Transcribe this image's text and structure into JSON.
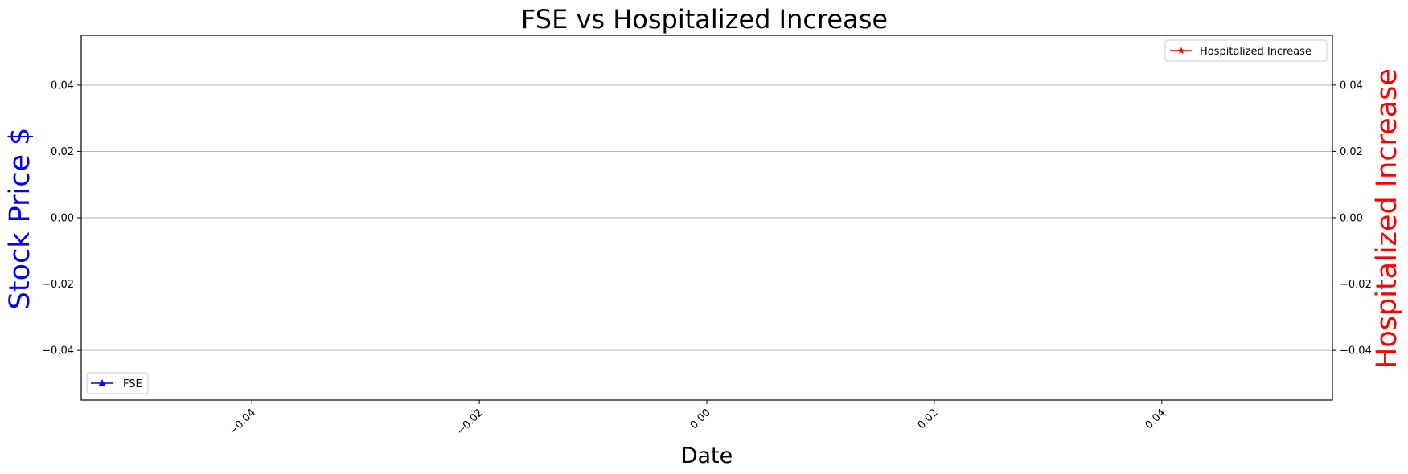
{
  "chart_data": {
    "type": "line",
    "title": "FSE vs Hospitalized Increase",
    "xlabel": "Date",
    "ylabel_left": "Stock Price $",
    "ylabel_right": "Hospitalized Increase",
    "xlim": [
      -0.055,
      0.055
    ],
    "ylim_left": [
      -0.055,
      0.055
    ],
    "ylim_right": [
      -0.055,
      0.055
    ],
    "x_ticks": [
      "−0.04",
      "−0.02",
      "0.00",
      "0.02",
      "0.04"
    ],
    "x_tick_values": [
      -0.04,
      -0.02,
      0.0,
      0.02,
      0.04
    ],
    "y_ticks_left": [
      "0.04",
      "0.02",
      "0.00",
      "−0.02",
      "−0.04"
    ],
    "y_ticks_right": [
      "0.04",
      "0.02",
      "0.00",
      "−0.02",
      "−0.04"
    ],
    "y_tick_values": [
      0.04,
      0.02,
      0.0,
      -0.02,
      -0.04
    ],
    "grid": "horizontal",
    "series": [
      {
        "name": "FSE",
        "axis": "left",
        "color": "#0000ff",
        "marker": "triangle",
        "x": [],
        "y": []
      },
      {
        "name": "Hospitalized Increase",
        "axis": "right",
        "color": "#ff0000",
        "marker": "star",
        "x": [],
        "y": []
      }
    ],
    "legends": [
      {
        "series": "Hospitalized Increase",
        "placement": "upper-right"
      },
      {
        "series": "FSE",
        "placement": "lower-left"
      }
    ]
  }
}
